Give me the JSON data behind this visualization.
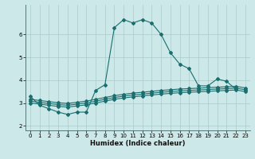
{
  "xlabel": "Humidex (Indice chaleur)",
  "xlim": [
    -0.5,
    23.5
  ],
  "ylim": [
    1.8,
    7.3
  ],
  "xticks": [
    0,
    1,
    2,
    3,
    4,
    5,
    6,
    7,
    8,
    9,
    10,
    11,
    12,
    13,
    14,
    15,
    16,
    17,
    18,
    19,
    20,
    21,
    22,
    23
  ],
  "yticks": [
    2,
    3,
    4,
    5,
    6
  ],
  "bg_color": "#cce8e8",
  "grid_color": "#aacccc",
  "line_color": "#1a6e6e",
  "main_x": [
    0,
    1,
    2,
    3,
    4,
    5,
    6,
    7,
    8,
    9,
    10,
    11,
    12,
    13,
    14,
    15,
    16,
    17,
    18,
    19,
    20,
    21,
    22
  ],
  "main_y": [
    3.3,
    2.9,
    2.75,
    2.6,
    2.5,
    2.6,
    2.6,
    3.55,
    3.8,
    6.3,
    6.65,
    6.5,
    6.65,
    6.5,
    6.0,
    5.2,
    4.7,
    4.5,
    3.75,
    3.75,
    4.05,
    3.95,
    3.6
  ],
  "flat1_x": [
    0,
    1,
    2,
    3,
    4,
    5,
    6,
    7,
    8,
    9,
    10,
    11,
    12,
    13,
    14,
    15,
    16,
    17,
    18,
    19,
    20,
    21,
    22,
    23
  ],
  "flat1_y": [
    3.0,
    2.95,
    2.9,
    2.85,
    2.82,
    2.87,
    2.92,
    3.0,
    3.08,
    3.16,
    3.22,
    3.27,
    3.31,
    3.35,
    3.39,
    3.42,
    3.45,
    3.47,
    3.49,
    3.51,
    3.53,
    3.55,
    3.57,
    3.5
  ],
  "flat2_x": [
    0,
    1,
    2,
    3,
    4,
    5,
    6,
    7,
    8,
    9,
    10,
    11,
    12,
    13,
    14,
    15,
    16,
    17,
    18,
    19,
    20,
    21,
    22,
    23
  ],
  "flat2_y": [
    3.08,
    3.03,
    2.98,
    2.93,
    2.9,
    2.95,
    3.0,
    3.08,
    3.16,
    3.24,
    3.3,
    3.35,
    3.39,
    3.43,
    3.47,
    3.5,
    3.53,
    3.55,
    3.57,
    3.59,
    3.61,
    3.63,
    3.65,
    3.58
  ],
  "flat3_x": [
    0,
    1,
    2,
    3,
    4,
    5,
    6,
    7,
    8,
    9,
    10,
    11,
    12,
    13,
    14,
    15,
    16,
    17,
    18,
    19,
    20,
    21,
    22,
    23
  ],
  "flat3_y": [
    3.16,
    3.11,
    3.06,
    3.01,
    2.98,
    3.03,
    3.08,
    3.16,
    3.24,
    3.32,
    3.38,
    3.43,
    3.47,
    3.51,
    3.55,
    3.58,
    3.61,
    3.63,
    3.65,
    3.67,
    3.69,
    3.71,
    3.73,
    3.66
  ]
}
